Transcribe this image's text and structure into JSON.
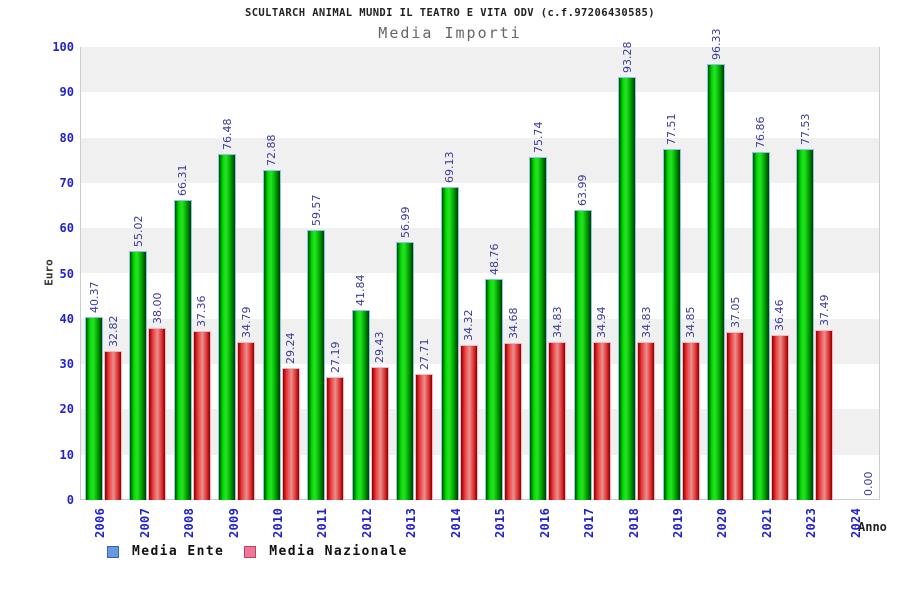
{
  "header": {
    "title": "SCULTARCH ANIMAL MUNDI IL TEATRO E VITA ODV (c.f.97206430585)",
    "subtitle": "Media Importi"
  },
  "chart_data": {
    "type": "bar",
    "title": "SCULTARCH ANIMAL MUNDI IL TEATRO E VITA ODV (c.f.97206430585)",
    "subtitle": "Media Importi",
    "xlabel": "Anno",
    "ylabel": "Euro",
    "ylim": [
      0,
      100
    ],
    "yticks": [
      0,
      10,
      20,
      30,
      40,
      50,
      60,
      70,
      80,
      90,
      100
    ],
    "grid": "alternating horizontal gray bands every 10 units (gray on 10-20, 30-40, 50-60, 70-80, 90-100)",
    "legend_position": "bottom-left",
    "value_label_format": "two decimals, rotated 90deg above each bar",
    "categories": [
      "2006",
      "2007",
      "2008",
      "2009",
      "2010",
      "2011",
      "2012",
      "2013",
      "2014",
      "2015",
      "2016",
      "2017",
      "2018",
      "2019",
      "2020",
      "2021",
      "2023",
      "2024"
    ],
    "series": [
      {
        "name": "Media Ente",
        "bar_color": "green",
        "legend_color": "#6699dd",
        "legend_border": "#3366aa",
        "values": [
          40.37,
          55.02,
          66.31,
          76.48,
          72.88,
          59.57,
          41.84,
          56.99,
          69.13,
          48.76,
          75.74,
          63.99,
          93.28,
          77.51,
          96.33,
          76.86,
          77.53,
          null
        ]
      },
      {
        "name": "Media Nazionale",
        "bar_color": "red",
        "legend_color": "#ee7799",
        "legend_border": "#bb4466",
        "values": [
          32.82,
          38.0,
          37.36,
          34.79,
          29.24,
          27.19,
          29.43,
          27.71,
          34.32,
          34.68,
          34.83,
          34.94,
          34.83,
          34.85,
          37.05,
          36.46,
          37.49,
          0.0
        ]
      }
    ],
    "colors": {
      "axis_tick_label": "#2222cc",
      "value_label": "#3a3a99",
      "band_gray": "#f0f0f0",
      "plot_border": "#cccccc",
      "green_bar_mid": "#00e000",
      "red_bar_mid": "#ee3333",
      "title_text": "#222222",
      "subtitle_text": "#666666"
    }
  }
}
